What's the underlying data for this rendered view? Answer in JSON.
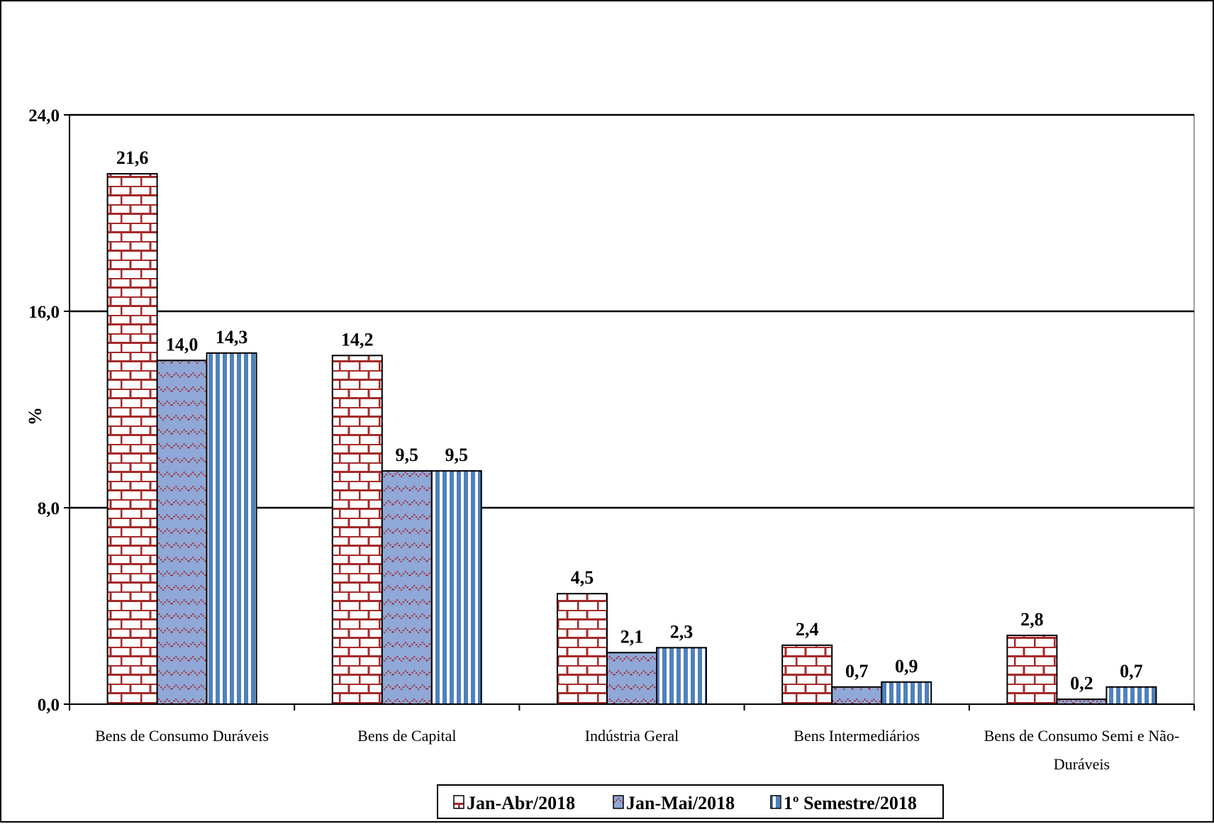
{
  "chart_data": {
    "type": "bar",
    "ylabel": "%",
    "ylim": [
      0,
      24
    ],
    "yticks": [
      "0,0",
      "8,0",
      "16,0",
      "24,0"
    ],
    "grid": true,
    "legend_position": "bottom",
    "categories": [
      [
        "Bens de Consumo Duráveis"
      ],
      [
        "Bens de Capital"
      ],
      [
        "Indústria Geral"
      ],
      [
        "Bens Intermediários"
      ],
      [
        "Bens de Consumo Semi e Não-",
        "Duráveis"
      ]
    ],
    "series": [
      {
        "name": "Jan-Abr/2018",
        "values": [
          21.6,
          14.2,
          4.5,
          2.4,
          2.8
        ],
        "labels": [
          "21,6",
          "14,2",
          "4,5",
          "2,4",
          "2,8"
        ],
        "color": "#a52a2a",
        "pattern": "brick"
      },
      {
        "name": "Jan-Mai/2018",
        "values": [
          14.0,
          9.5,
          2.1,
          0.7,
          0.2
        ],
        "labels": [
          "14,0",
          "9,5",
          "2,1",
          "0,7",
          "0,2"
        ],
        "color": "#8fa8d8",
        "pattern": "zigzag"
      },
      {
        "name": "1º Semestre/2018",
        "values": [
          14.3,
          9.5,
          2.3,
          0.9,
          0.7
        ],
        "labels": [
          "14,3",
          "9,5",
          "2,3",
          "0,9",
          "0,7"
        ],
        "color": "#4f81bd",
        "pattern": "vertical-stripes"
      }
    ]
  }
}
